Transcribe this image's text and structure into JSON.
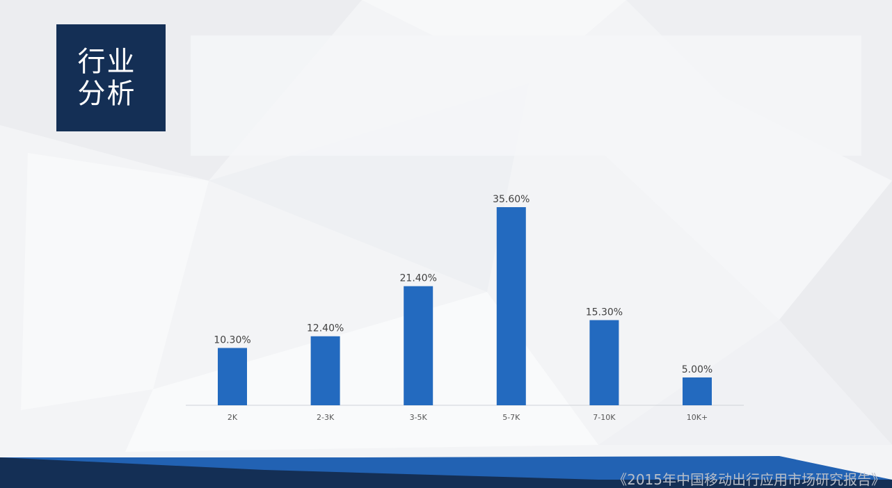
{
  "slide": {
    "title": "行业分析",
    "footer": "《2015年中国移动出行应用市场研究报告》"
  },
  "colors": {
    "bar": "#236abf",
    "title_bg": "#142f55",
    "footer_dark": "#142f55",
    "footer_blue": "#2262b3"
  },
  "chart_data": {
    "type": "bar",
    "categories": [
      "2K",
      "2-3K",
      "3-5K",
      "5-7K",
      "7-10K",
      "10K+"
    ],
    "values": [
      10.3,
      12.4,
      21.4,
      35.6,
      15.3,
      5.0
    ],
    "data_labels": [
      "10.30%",
      "12.40%",
      "21.40%",
      "35.60%",
      "15.30%",
      "5.00%"
    ],
    "ylim": [
      0,
      40
    ],
    "grid": false,
    "legend": "none"
  }
}
